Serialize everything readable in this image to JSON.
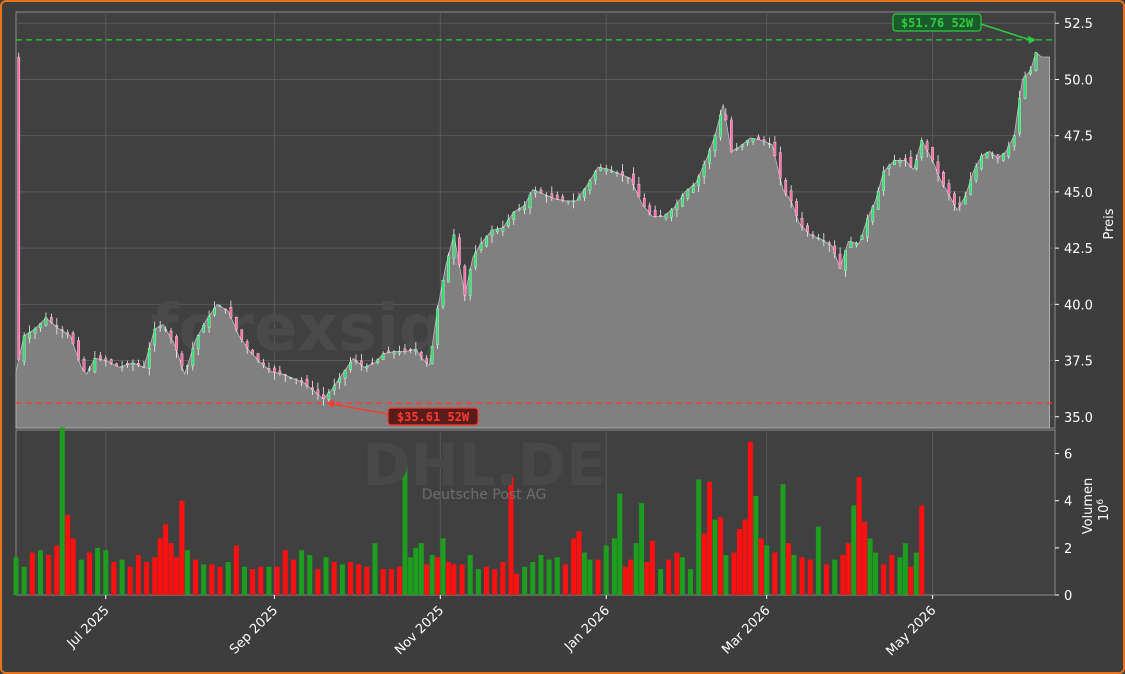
{
  "chart_data": {
    "type": "candlestick",
    "watermark": "forexsignale.trade",
    "symbol": "DHL.DE",
    "company": "Deutsche Post AG",
    "price_axis": {
      "label": "Preis",
      "ylim": [
        34.5,
        53.0
      ],
      "ticks": [
        "35.0",
        "37.5",
        "40.0",
        "42.5",
        "45.0",
        "47.5",
        "50.0",
        "52.5"
      ]
    },
    "volume_axis": {
      "label": "Volumen",
      "unit": "10",
      "unit_exp": "6",
      "ylim": [
        0,
        7.0
      ],
      "ticks": [
        "0",
        "2",
        "4",
        "6"
      ]
    },
    "x_ticks": [
      "Jul 2025",
      "Sep 2025",
      "Nov 2025",
      "Jan 2026",
      "Mar 2026",
      "May 2026"
    ],
    "high_52w": {
      "value": 51.76,
      "label": "$51.76 52W"
    },
    "low_52w": {
      "value": 35.61,
      "label": "$35.61 52W"
    },
    "close_series": [
      [
        0,
        37.0
      ],
      [
        3,
        38.6
      ],
      [
        7,
        38.9
      ],
      [
        11,
        39.4
      ],
      [
        16,
        38.9
      ],
      [
        20,
        38.6
      ],
      [
        24,
        37.2
      ],
      [
        26,
        36.9
      ],
      [
        29,
        37.6
      ],
      [
        33,
        37.5
      ],
      [
        38,
        37.2
      ],
      [
        43,
        37.4
      ],
      [
        47,
        37.2
      ],
      [
        51,
        38.9
      ],
      [
        54,
        39.1
      ],
      [
        58,
        38.3
      ],
      [
        62,
        36.9
      ],
      [
        66,
        38.4
      ],
      [
        70,
        39.3
      ],
      [
        74,
        40.0
      ],
      [
        78,
        39.7
      ],
      [
        82,
        38.6
      ],
      [
        86,
        37.9
      ],
      [
        90,
        37.4
      ],
      [
        94,
        37.0
      ],
      [
        98,
        36.9
      ],
      [
        102,
        36.7
      ],
      [
        106,
        36.5
      ],
      [
        110,
        36.1
      ],
      [
        113,
        35.8
      ],
      [
        116,
        36.2
      ],
      [
        120,
        36.9
      ],
      [
        124,
        37.6
      ],
      [
        128,
        37.2
      ],
      [
        132,
        37.4
      ],
      [
        135,
        37.8
      ],
      [
        139,
        37.9
      ],
      [
        143,
        37.9
      ],
      [
        147,
        38.0
      ],
      [
        150,
        37.5
      ],
      [
        152,
        37.3
      ],
      [
        155,
        39.8
      ],
      [
        158,
        41.7
      ],
      [
        161,
        43.1
      ],
      [
        165,
        40.4
      ],
      [
        168,
        42.1
      ],
      [
        171,
        42.7
      ],
      [
        175,
        43.3
      ],
      [
        179,
        43.4
      ],
      [
        183,
        44.1
      ],
      [
        187,
        44.4
      ],
      [
        190,
        45.1
      ],
      [
        194,
        44.9
      ],
      [
        198,
        44.7
      ],
      [
        202,
        44.6
      ],
      [
        206,
        44.6
      ],
      [
        210,
        45.3
      ],
      [
        214,
        46.1
      ],
      [
        218,
        46.0
      ],
      [
        222,
        45.8
      ],
      [
        226,
        45.6
      ],
      [
        230,
        44.5
      ],
      [
        234,
        43.9
      ],
      [
        238,
        43.9
      ],
      [
        242,
        44.3
      ],
      [
        246,
        45.0
      ],
      [
        250,
        45.4
      ],
      [
        254,
        46.5
      ],
      [
        257,
        47.5
      ],
      [
        260,
        48.9
      ],
      [
        263,
        46.8
      ],
      [
        266,
        47.0
      ],
      [
        270,
        47.4
      ],
      [
        274,
        47.3
      ],
      [
        278,
        47.1
      ],
      [
        282,
        45.1
      ],
      [
        285,
        44.6
      ],
      [
        288,
        43.6
      ],
      [
        292,
        43.1
      ],
      [
        296,
        42.9
      ],
      [
        300,
        42.6
      ],
      [
        303,
        41.6
      ],
      [
        306,
        42.8
      ],
      [
        310,
        42.7
      ],
      [
        313,
        43.8
      ],
      [
        316,
        44.6
      ],
      [
        319,
        45.9
      ],
      [
        323,
        46.4
      ],
      [
        327,
        46.4
      ],
      [
        330,
        46.0
      ],
      [
        333,
        47.3
      ],
      [
        337,
        46.4
      ],
      [
        340,
        45.5
      ],
      [
        343,
        44.9
      ],
      [
        346,
        44.2
      ],
      [
        349,
        44.8
      ],
      [
        352,
        45.9
      ],
      [
        355,
        46.6
      ],
      [
        358,
        46.8
      ],
      [
        361,
        46.5
      ],
      [
        364,
        46.8
      ],
      [
        367,
        47.5
      ],
      [
        370,
        50.0
      ],
      [
        373,
        50.4
      ],
      [
        375,
        51.2
      ],
      [
        376,
        51.1
      ],
      [
        377,
        51.0
      ],
      [
        380,
        51.0
      ]
    ],
    "volume_bars": [
      {
        "d": 0,
        "v": 1.6,
        "up": true
      },
      {
        "d": 3,
        "v": 1.2,
        "up": true
      },
      {
        "d": 6,
        "v": 1.8,
        "up": false
      },
      {
        "d": 9,
        "v": 1.9,
        "up": true
      },
      {
        "d": 12,
        "v": 1.7,
        "up": false
      },
      {
        "d": 15,
        "v": 2.1,
        "up": false
      },
      {
        "d": 17,
        "v": 7.1,
        "up": true
      },
      {
        "d": 19,
        "v": 3.4,
        "up": false
      },
      {
        "d": 21,
        "v": 2.4,
        "up": false
      },
      {
        "d": 24,
        "v": 1.5,
        "up": true
      },
      {
        "d": 27,
        "v": 1.8,
        "up": false
      },
      {
        "d": 30,
        "v": 2.0,
        "up": true
      },
      {
        "d": 33,
        "v": 1.9,
        "up": true
      },
      {
        "d": 36,
        "v": 1.4,
        "up": false
      },
      {
        "d": 39,
        "v": 1.5,
        "up": true
      },
      {
        "d": 42,
        "v": 1.2,
        "up": false
      },
      {
        "d": 45,
        "v": 1.7,
        "up": false
      },
      {
        "d": 48,
        "v": 1.4,
        "up": false
      },
      {
        "d": 51,
        "v": 1.6,
        "up": false
      },
      {
        "d": 53,
        "v": 2.4,
        "up": false
      },
      {
        "d": 55,
        "v": 3.0,
        "up": false
      },
      {
        "d": 57,
        "v": 2.2,
        "up": false
      },
      {
        "d": 59,
        "v": 1.6,
        "up": false
      },
      {
        "d": 61,
        "v": 4.0,
        "up": false
      },
      {
        "d": 63,
        "v": 1.9,
        "up": true
      },
      {
        "d": 66,
        "v": 1.5,
        "up": false
      },
      {
        "d": 69,
        "v": 1.3,
        "up": true
      },
      {
        "d": 72,
        "v": 1.3,
        "up": false
      },
      {
        "d": 75,
        "v": 1.2,
        "up": false
      },
      {
        "d": 78,
        "v": 1.4,
        "up": true
      },
      {
        "d": 81,
        "v": 2.1,
        "up": false
      },
      {
        "d": 84,
        "v": 1.2,
        "up": true
      },
      {
        "d": 87,
        "v": 1.1,
        "up": false
      },
      {
        "d": 90,
        "v": 1.2,
        "up": false
      },
      {
        "d": 93,
        "v": 1.2,
        "up": true
      },
      {
        "d": 96,
        "v": 1.2,
        "up": false
      },
      {
        "d": 99,
        "v": 1.9,
        "up": false
      },
      {
        "d": 102,
        "v": 1.5,
        "up": false
      },
      {
        "d": 105,
        "v": 1.9,
        "up": true
      },
      {
        "d": 108,
        "v": 1.7,
        "up": true
      },
      {
        "d": 111,
        "v": 1.1,
        "up": false
      },
      {
        "d": 114,
        "v": 1.6,
        "up": true
      },
      {
        "d": 117,
        "v": 1.4,
        "up": false
      },
      {
        "d": 120,
        "v": 1.3,
        "up": true
      },
      {
        "d": 123,
        "v": 1.4,
        "up": false
      },
      {
        "d": 126,
        "v": 1.3,
        "up": false
      },
      {
        "d": 129,
        "v": 1.2,
        "up": false
      },
      {
        "d": 132,
        "v": 2.2,
        "up": true
      },
      {
        "d": 135,
        "v": 1.1,
        "up": false
      },
      {
        "d": 138,
        "v": 1.1,
        "up": false
      },
      {
        "d": 141,
        "v": 1.2,
        "up": false
      },
      {
        "d": 143,
        "v": 5.6,
        "up": true
      },
      {
        "d": 145,
        "v": 1.6,
        "up": true
      },
      {
        "d": 147,
        "v": 2.0,
        "up": true
      },
      {
        "d": 149,
        "v": 2.2,
        "up": true
      },
      {
        "d": 151,
        "v": 1.3,
        "up": false
      },
      {
        "d": 153,
        "v": 1.7,
        "up": true
      },
      {
        "d": 155,
        "v": 1.6,
        "up": false
      },
      {
        "d": 157,
        "v": 2.4,
        "up": true
      },
      {
        "d": 159,
        "v": 1.4,
        "up": false
      },
      {
        "d": 161,
        "v": 1.3,
        "up": false
      },
      {
        "d": 164,
        "v": 1.3,
        "up": false
      },
      {
        "d": 167,
        "v": 1.7,
        "up": true
      },
      {
        "d": 170,
        "v": 1.1,
        "up": true
      },
      {
        "d": 173,
        "v": 1.2,
        "up": false
      },
      {
        "d": 176,
        "v": 1.1,
        "up": false
      },
      {
        "d": 179,
        "v": 1.4,
        "up": false
      },
      {
        "d": 182,
        "v": 5.0,
        "up": false
      },
      {
        "d": 184,
        "v": 0.9,
        "up": false
      },
      {
        "d": 187,
        "v": 1.2,
        "up": true
      },
      {
        "d": 190,
        "v": 1.4,
        "up": true
      },
      {
        "d": 193,
        "v": 1.7,
        "up": true
      },
      {
        "d": 196,
        "v": 1.5,
        "up": true
      },
      {
        "d": 199,
        "v": 1.6,
        "up": true
      },
      {
        "d": 202,
        "v": 1.3,
        "up": false
      },
      {
        "d": 205,
        "v": 2.4,
        "up": false
      },
      {
        "d": 207,
        "v": 2.7,
        "up": false
      },
      {
        "d": 209,
        "v": 1.8,
        "up": true
      },
      {
        "d": 211,
        "v": 1.5,
        "up": true
      },
      {
        "d": 214,
        "v": 1.5,
        "up": false
      },
      {
        "d": 217,
        "v": 2.1,
        "up": true
      },
      {
        "d": 220,
        "v": 2.4,
        "up": true
      },
      {
        "d": 222,
        "v": 4.3,
        "up": true
      },
      {
        "d": 224,
        "v": 1.2,
        "up": false
      },
      {
        "d": 226,
        "v": 1.5,
        "up": false
      },
      {
        "d": 228,
        "v": 2.2,
        "up": true
      },
      {
        "d": 230,
        "v": 3.9,
        "up": true
      },
      {
        "d": 232,
        "v": 1.4,
        "up": false
      },
      {
        "d": 234,
        "v": 2.3,
        "up": false
      },
      {
        "d": 237,
        "v": 1.1,
        "up": true
      },
      {
        "d": 240,
        "v": 1.5,
        "up": false
      },
      {
        "d": 243,
        "v": 1.8,
        "up": false
      },
      {
        "d": 245,
        "v": 1.6,
        "up": true
      },
      {
        "d": 248,
        "v": 1.1,
        "up": true
      },
      {
        "d": 251,
        "v": 4.9,
        "up": true
      },
      {
        "d": 253,
        "v": 2.6,
        "up": false
      },
      {
        "d": 255,
        "v": 4.8,
        "up": false
      },
      {
        "d": 257,
        "v": 3.2,
        "up": true
      },
      {
        "d": 259,
        "v": 3.3,
        "up": false
      },
      {
        "d": 261,
        "v": 1.7,
        "up": true
      },
      {
        "d": 264,
        "v": 1.8,
        "up": false
      },
      {
        "d": 266,
        "v": 2.8,
        "up": false
      },
      {
        "d": 268,
        "v": 3.2,
        "up": false
      },
      {
        "d": 270,
        "v": 6.5,
        "up": false
      },
      {
        "d": 272,
        "v": 4.2,
        "up": true
      },
      {
        "d": 274,
        "v": 2.4,
        "up": false
      },
      {
        "d": 276,
        "v": 2.1,
        "up": true
      },
      {
        "d": 279,
        "v": 1.8,
        "up": false
      },
      {
        "d": 282,
        "v": 4.7,
        "up": true
      },
      {
        "d": 284,
        "v": 2.2,
        "up": false
      },
      {
        "d": 286,
        "v": 1.7,
        "up": true
      },
      {
        "d": 289,
        "v": 1.6,
        "up": false
      },
      {
        "d": 292,
        "v": 1.5,
        "up": false
      },
      {
        "d": 295,
        "v": 2.9,
        "up": true
      },
      {
        "d": 298,
        "v": 1.3,
        "up": false
      },
      {
        "d": 301,
        "v": 1.5,
        "up": true
      },
      {
        "d": 304,
        "v": 1.7,
        "up": false
      },
      {
        "d": 306,
        "v": 2.2,
        "up": false
      },
      {
        "d": 308,
        "v": 3.8,
        "up": true
      },
      {
        "d": 310,
        "v": 5.0,
        "up": false
      },
      {
        "d": 312,
        "v": 3.1,
        "up": false
      },
      {
        "d": 314,
        "v": 2.4,
        "up": true
      },
      {
        "d": 316,
        "v": 1.8,
        "up": true
      },
      {
        "d": 319,
        "v": 1.3,
        "up": false
      },
      {
        "d": 322,
        "v": 1.7,
        "up": false
      },
      {
        "d": 325,
        "v": 1.6,
        "up": true
      },
      {
        "d": 327,
        "v": 2.2,
        "up": true
      },
      {
        "d": 329,
        "v": 1.2,
        "up": false
      },
      {
        "d": 331,
        "v": 1.8,
        "up": true
      },
      {
        "d": 333,
        "v": 3.8,
        "up": false
      }
    ]
  }
}
